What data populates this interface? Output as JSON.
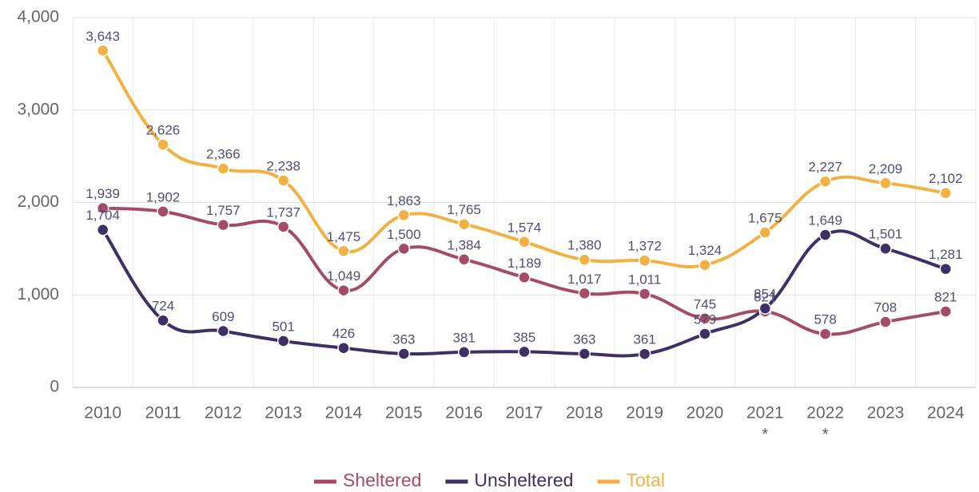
{
  "chart_data": {
    "type": "line",
    "categories": [
      "2010",
      "2011",
      "2012",
      "2013",
      "2014",
      "2015",
      "2016",
      "2017",
      "2018",
      "2019",
      "2020",
      "2021",
      "2022",
      "2023",
      "2024"
    ],
    "category_notes": [
      null,
      null,
      null,
      null,
      null,
      null,
      null,
      null,
      null,
      null,
      null,
      "*",
      "*",
      null,
      null
    ],
    "series": [
      {
        "name": "Sheltered",
        "color": "#a44c66",
        "values": [
          1939,
          1902,
          1757,
          1737,
          1049,
          1500,
          1384,
          1189,
          1017,
          1011,
          745,
          821,
          578,
          708,
          821
        ],
        "value_labels": [
          "1,939",
          "1,902",
          "1,757",
          "1,737",
          "1,049",
          "1,500",
          "1,384",
          "1,189",
          "1,017",
          "1,011",
          "745",
          "821",
          "578",
          "708",
          "821"
        ]
      },
      {
        "name": "Unsheltered",
        "color": "#3e2f65",
        "values": [
          1704,
          724,
          609,
          501,
          426,
          363,
          381,
          385,
          363,
          361,
          579,
          854,
          1649,
          1501,
          1281
        ],
        "value_labels": [
          "1,704",
          "724",
          "609",
          "501",
          "426",
          "363",
          "381",
          "385",
          "363",
          "361",
          "579",
          "854",
          "1,649",
          "1,501",
          "1,281"
        ]
      },
      {
        "name": "Total",
        "color": "#f1b244",
        "values": [
          3643,
          2626,
          2366,
          2238,
          1475,
          1863,
          1765,
          1574,
          1380,
          1372,
          1324,
          1675,
          2227,
          2209,
          2102
        ],
        "value_labels": [
          "3,643",
          "2,626",
          "2,366",
          "2,238",
          "1,475",
          "1,863",
          "1,765",
          "1,574",
          "1,380",
          "1,372",
          "1,324",
          "1,675",
          "2,227",
          "2,209",
          "2,102"
        ]
      }
    ],
    "ylim": [
      0,
      4000
    ],
    "yticks": [
      0,
      {
        "value": 1000,
        "label": "1,000"
      },
      {
        "value": 2000,
        "label": "2,000"
      },
      {
        "value": 3000,
        "label": "3,000"
      },
      {
        "value": 4000,
        "label": "4,000"
      }
    ],
    "grid": true,
    "legend": "bottom"
  }
}
